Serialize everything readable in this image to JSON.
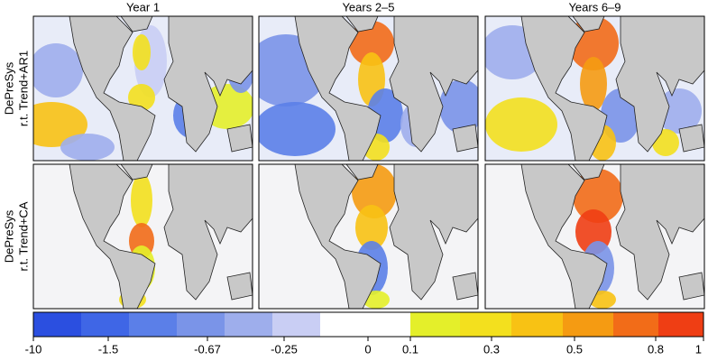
{
  "columns": [
    "Year 1",
    "Years 2–5",
    "Years 6–9"
  ],
  "rows": [
    {
      "model": "DePreSys",
      "reference": "r.t. Trend+AR1"
    },
    {
      "model": "DePreSys",
      "reference": "r.t. Trend+CA"
    }
  ],
  "colorbar": {
    "colors": [
      "#2b4fe0",
      "#3f66e6",
      "#5b7fe8",
      "#7a94e8",
      "#9eaeec",
      "#c9cef4",
      "#ffffff",
      "#ffffff",
      "#e4ef2a",
      "#f3e01e",
      "#f8c214",
      "#f59b12",
      "#f26c18",
      "#ef3e14"
    ],
    "labels": [
      "-10",
      "-1.5",
      "-0.67",
      "-0.25",
      "0",
      "0.1",
      "0.3",
      "0.5",
      "0.8",
      "1"
    ]
  }
}
